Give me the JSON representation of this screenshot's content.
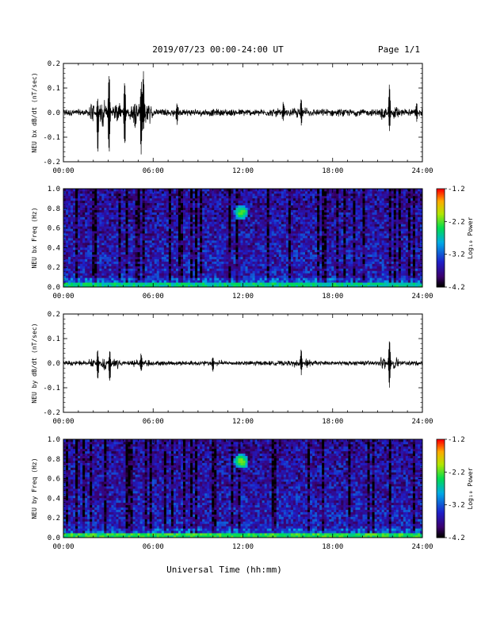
{
  "header": {
    "title": "2019/07/23  00:00-24:00 UT",
    "page_label": "Page 1/1"
  },
  "xlabel": "Universal Time (hh:mm)",
  "chart_data": [
    {
      "type": "line",
      "ylabel": "NEU bx dB/dt (nT/sec)",
      "xlim": [
        0,
        24
      ],
      "ylim": [
        -0.2,
        0.2
      ],
      "xticks": [
        "00:00",
        "06:00",
        "12:00",
        "18:00",
        "24:00"
      ],
      "yticks": [
        "-0.2",
        "-0.1",
        "0.0",
        "0.1",
        "0.2"
      ],
      "baseline_amplitude": 0.012,
      "line_color": "#000000",
      "events": [
        {
          "t": 2.3,
          "up": 0.06,
          "down": -0.19
        },
        {
          "t": 3.05,
          "up": 0.19,
          "down": -0.19
        },
        {
          "t": 4.1,
          "up": 0.15,
          "down": -0.15
        },
        {
          "t": 5.2,
          "up": 0.16,
          "down": -0.19
        },
        {
          "t": 5.35,
          "up": 0.17,
          "down": -0.08
        },
        {
          "t": 7.6,
          "up": 0.05,
          "down": -0.05
        },
        {
          "t": 14.7,
          "up": 0.04,
          "down": -0.04
        },
        {
          "t": 15.9,
          "up": 0.06,
          "down": -0.05
        },
        {
          "t": 21.8,
          "up": 0.11,
          "down": -0.07
        },
        {
          "t": 23.6,
          "up": 0.04,
          "down": -0.04
        }
      ]
    },
    {
      "type": "heatmap",
      "ylabel": "NEU bx Freq (Hz)",
      "xlim": [
        0,
        24
      ],
      "ylim": [
        0,
        1.0
      ],
      "xticks": [
        "00:00",
        "06:00",
        "12:00",
        "18:00",
        "24:00"
      ],
      "yticks": [
        "0.0",
        "0.2",
        "0.4",
        "0.6",
        "0.8",
        "1.0"
      ],
      "colorbar": {
        "label": "Log₁₀ Power",
        "ticks": [
          "-1.2",
          "-2.2",
          "-3.2",
          "-4.2"
        ],
        "range": [
          -4.2,
          -1.2
        ]
      },
      "hotspot": {
        "t": 11.9,
        "f": 0.76,
        "level": -2.4
      },
      "low_freq_level": -2.8
    },
    {
      "type": "line",
      "ylabel": "NEU by dB/dt (nT/sec)",
      "xlim": [
        0,
        24
      ],
      "ylim": [
        -0.2,
        0.2
      ],
      "xticks": [
        "00:00",
        "06:00",
        "12:00",
        "18:00",
        "24:00"
      ],
      "yticks": [
        "-0.2",
        "-0.1",
        "0.0",
        "0.1",
        "0.2"
      ],
      "baseline_amplitude": 0.008,
      "line_color": "#000000",
      "events": [
        {
          "t": 2.3,
          "up": 0.06,
          "down": -0.09
        },
        {
          "t": 3.1,
          "up": 0.06,
          "down": -0.1
        },
        {
          "t": 5.2,
          "up": 0.05,
          "down": -0.04
        },
        {
          "t": 10.0,
          "up": 0.03,
          "down": -0.03
        },
        {
          "t": 15.9,
          "up": 0.07,
          "down": -0.05
        },
        {
          "t": 21.8,
          "up": 0.11,
          "down": -0.1
        }
      ]
    },
    {
      "type": "heatmap",
      "ylabel": "NEU by Freq (Hz)",
      "xlim": [
        0,
        24
      ],
      "ylim": [
        0,
        1.0
      ],
      "xticks": [
        "00:00",
        "06:00",
        "12:00",
        "18:00",
        "24:00"
      ],
      "yticks": [
        "0.0",
        "0.2",
        "0.4",
        "0.6",
        "0.8",
        "1.0"
      ],
      "colorbar": {
        "label": "Log₁₀ Power",
        "ticks": [
          "-1.2",
          "-2.2",
          "-3.2",
          "-4.2"
        ],
        "range": [
          -4.2,
          -1.2
        ]
      },
      "hotspot": {
        "t": 11.9,
        "f": 0.78,
        "level": -2.3
      },
      "low_freq_level": -2.6
    }
  ]
}
